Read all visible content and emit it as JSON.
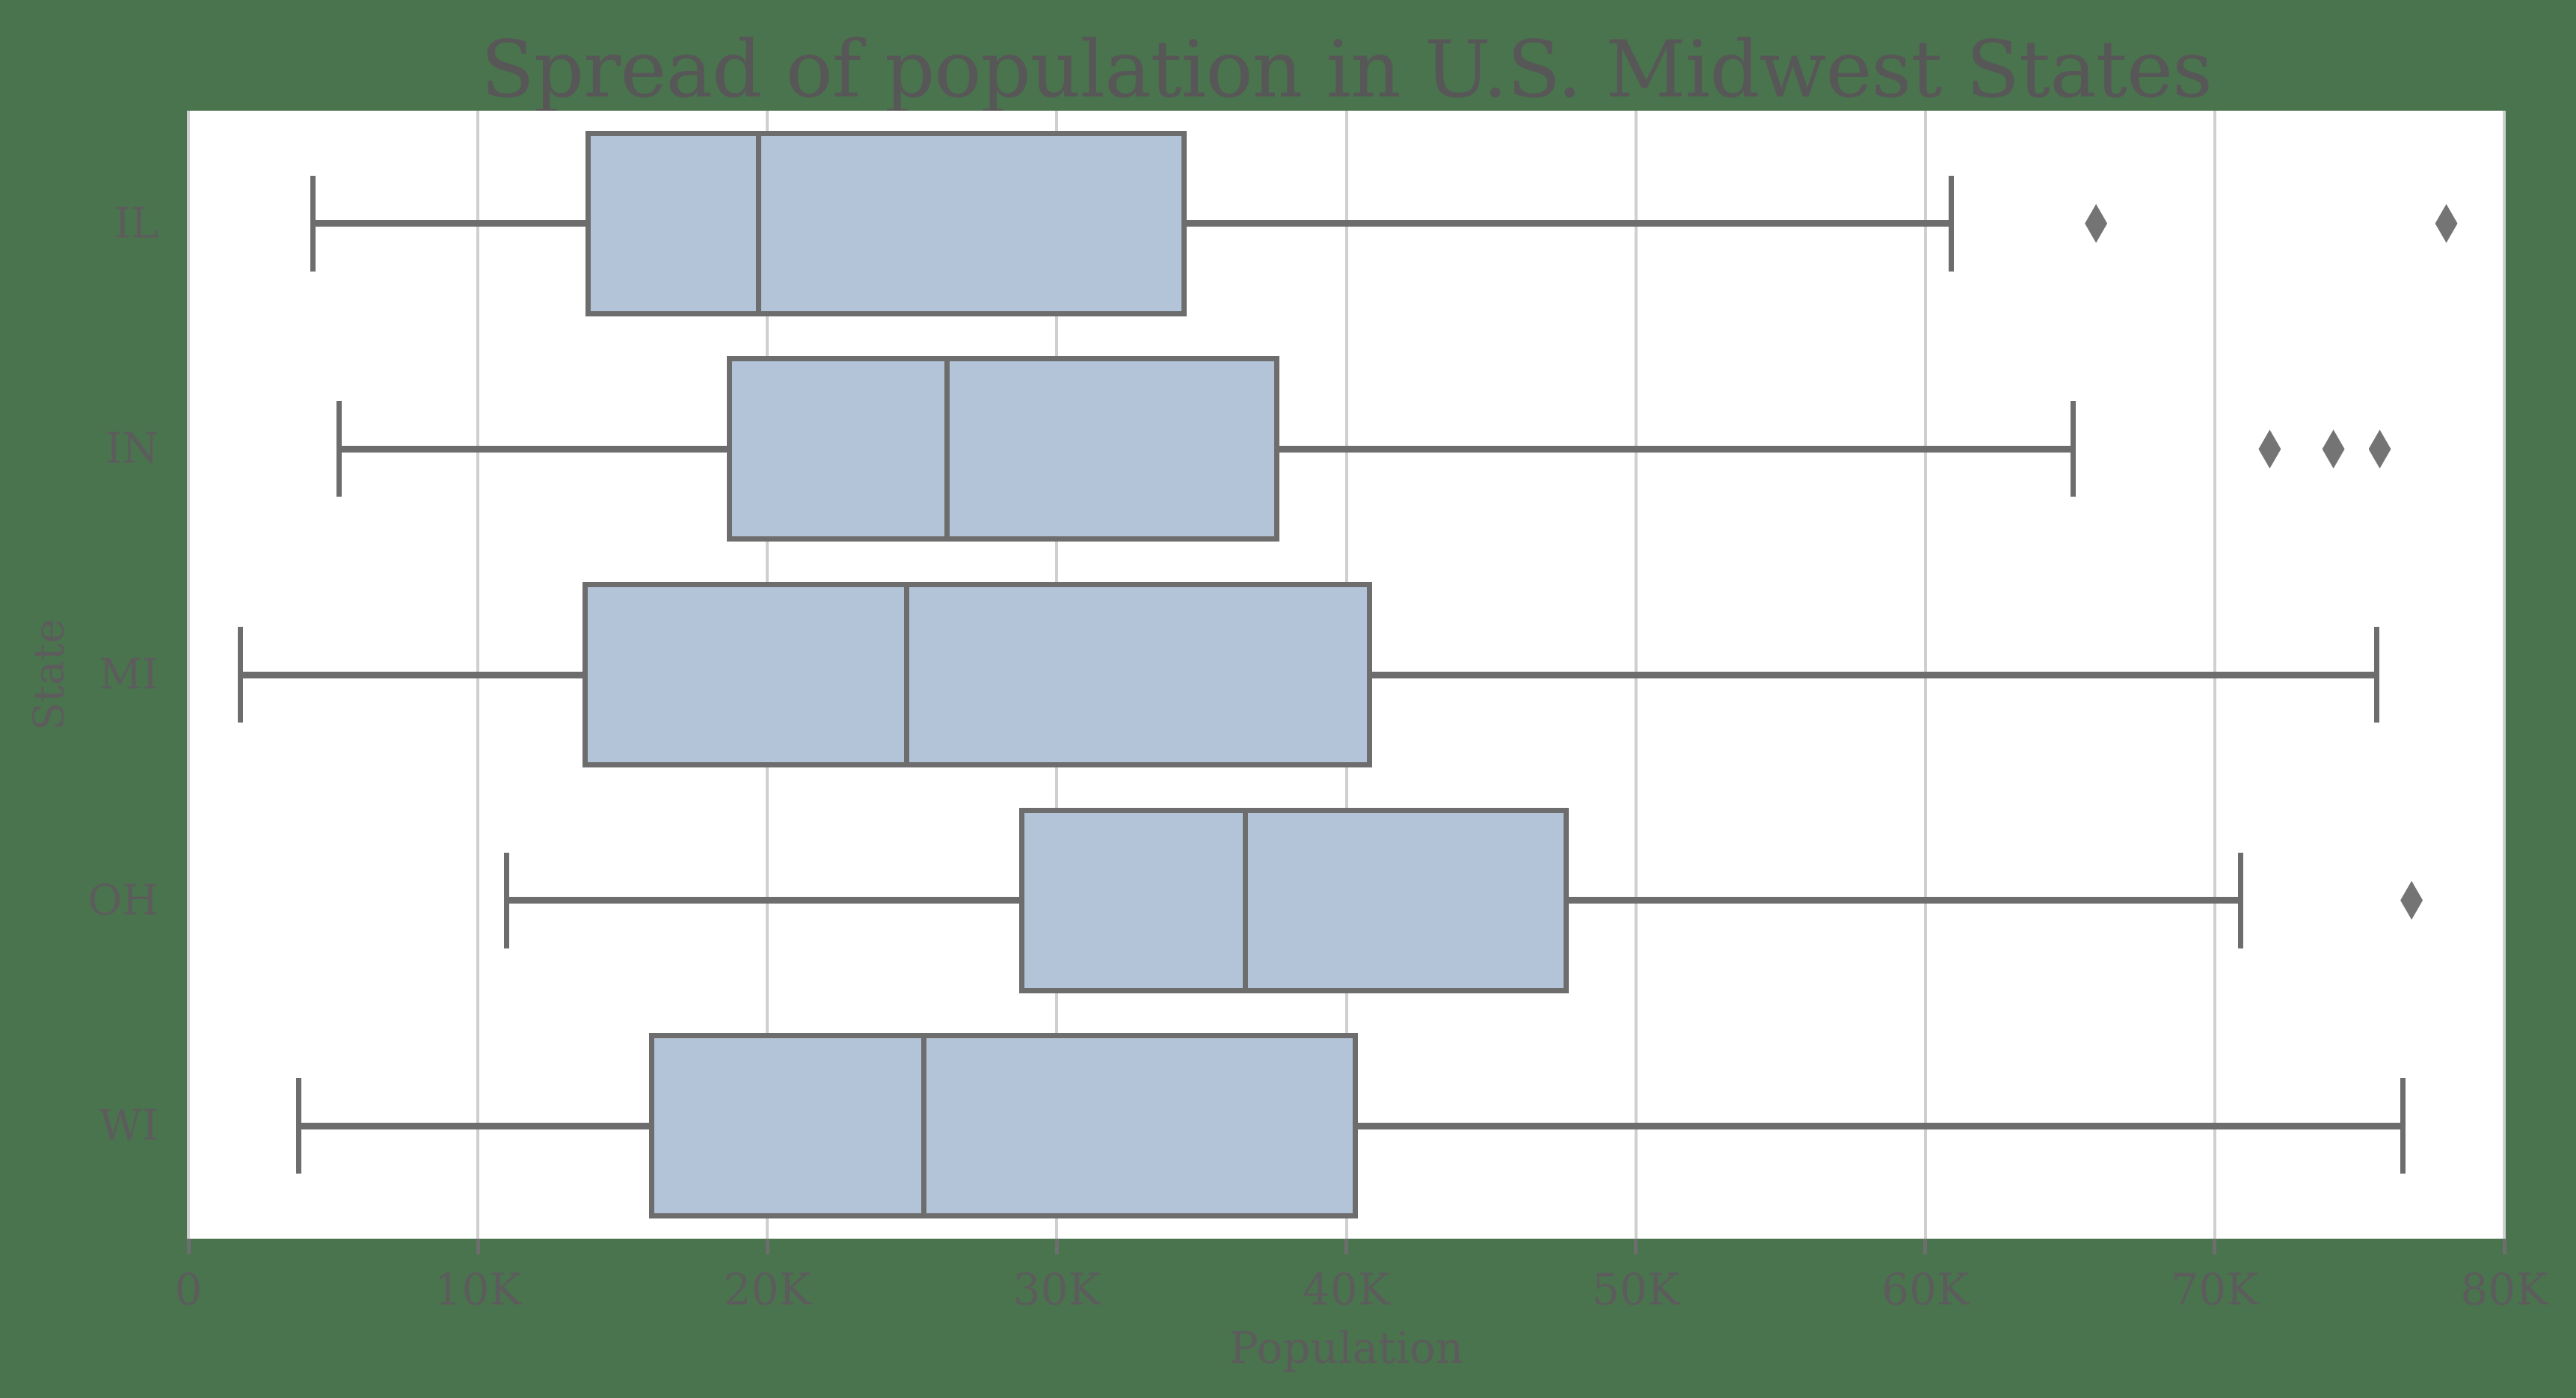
{
  "chart_data": {
    "type": "box",
    "orientation": "horizontal",
    "title": "Spread of population in U.S. Midwest States",
    "xlabel": "Population",
    "ylabel": "State",
    "categories": [
      "IL",
      "IN",
      "MI",
      "OH",
      "WI"
    ],
    "series": [
      {
        "name": "IL",
        "whisker_low": 4300,
        "q1": 13800,
        "median": 19700,
        "q3": 34400,
        "whisker_high": 60900,
        "outliers": [
          65900,
          78000
        ]
      },
      {
        "name": "IN",
        "whisker_low": 5200,
        "q1": 18700,
        "median": 26200,
        "q3": 37600,
        "whisker_high": 65100,
        "outliers": [
          71900,
          74100,
          75700
        ]
      },
      {
        "name": "MI",
        "whisker_low": 1800,
        "q1": 13700,
        "median": 24800,
        "q3": 40800,
        "whisker_high": 75600,
        "outliers": []
      },
      {
        "name": "OH",
        "whisker_low": 11000,
        "q1": 28800,
        "median": 36500,
        "q3": 47600,
        "whisker_high": 70900,
        "outliers": [
          76800
        ]
      },
      {
        "name": "WI",
        "whisker_low": 3800,
        "q1": 16000,
        "median": 25400,
        "q3": 40300,
        "whisker_high": 76500,
        "outliers": []
      }
    ],
    "xlim": [
      0,
      80000
    ],
    "x_ticks": [
      {
        "value": 0,
        "label": "0"
      },
      {
        "value": 10000,
        "label": "10K"
      },
      {
        "value": 20000,
        "label": "20K"
      },
      {
        "value": 30000,
        "label": "30K"
      },
      {
        "value": 40000,
        "label": "40K"
      },
      {
        "value": 50000,
        "label": "50K"
      },
      {
        "value": 60000,
        "label": "60K"
      },
      {
        "value": 70000,
        "label": "70K"
      },
      {
        "value": 80000,
        "label": "80K"
      }
    ],
    "grid": "vertical",
    "legend": "none",
    "colors": {
      "figure_background": "#4a744e",
      "plot_background": "#ffffff",
      "box_fill": "#b4c4d8",
      "box_edge": "#6d6d6d",
      "whisker": "#6d6d6d",
      "median": "#6d6d6d",
      "outlier": "#747474",
      "gridline": "#cfcfcf",
      "tick_mark": "#6d6d6d",
      "text": "#5c5c5c",
      "title_text": "#575757"
    }
  }
}
